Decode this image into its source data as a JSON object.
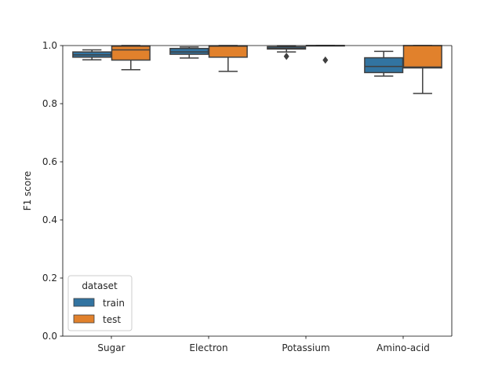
{
  "chart_data": {
    "type": "box",
    "title": "",
    "xlabel": "",
    "ylabel": "F1 score",
    "ylim": [
      0.0,
      1.0
    ],
    "yticks": [
      "0.0",
      "0.2",
      "0.4",
      "0.6",
      "0.8",
      "1.0"
    ],
    "categories": [
      "Sugar",
      "Electron",
      "Potassium",
      "Amino-acid"
    ],
    "legend": {
      "title": "dataset",
      "position": "lower-left"
    },
    "series": [
      {
        "name": "train",
        "color": "#3274a1",
        "boxes": [
          {
            "whislo": 0.951,
            "q1": 0.96,
            "med": 0.968,
            "q3": 0.978,
            "whishi": 0.985,
            "fliers": []
          },
          {
            "whislo": 0.957,
            "q1": 0.97,
            "med": 0.978,
            "q3": 0.99,
            "whishi": 0.995,
            "fliers": []
          },
          {
            "whislo": 0.978,
            "q1": 0.988,
            "med": 0.991,
            "q3": 0.996,
            "whishi": 0.999,
            "fliers": [
              0.963
            ]
          },
          {
            "whislo": 0.895,
            "q1": 0.907,
            "med": 0.928,
            "q3": 0.958,
            "whishi": 0.98,
            "fliers": []
          }
        ]
      },
      {
        "name": "test",
        "color": "#e1812c",
        "boxes": [
          {
            "whislo": 0.917,
            "q1": 0.95,
            "med": 0.985,
            "q3": 0.998,
            "whishi": 1.0,
            "fliers": []
          },
          {
            "whislo": 0.911,
            "q1": 0.96,
            "med": 0.998,
            "q3": 0.999,
            "whishi": 1.0,
            "fliers": []
          },
          {
            "whislo": 1.0,
            "q1": 1.0,
            "med": 1.0,
            "q3": 1.0,
            "whishi": 1.0,
            "fliers": [
              0.95
            ]
          },
          {
            "whislo": 0.835,
            "q1": 0.923,
            "med": 0.926,
            "q3": 1.0,
            "whishi": 1.0,
            "fliers": []
          }
        ]
      }
    ]
  }
}
